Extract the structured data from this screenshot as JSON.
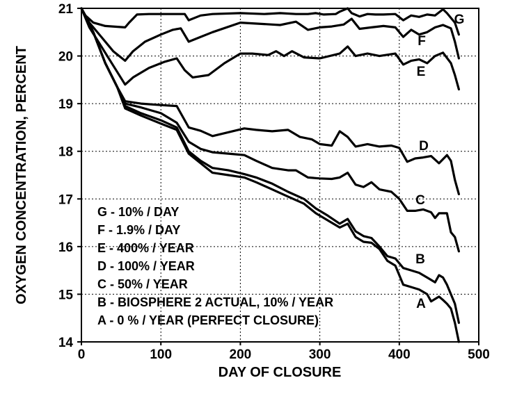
{
  "chart_data": {
    "type": "line",
    "title": "",
    "xlabel": "DAY OF CLOSURE",
    "ylabel": "OXYGEN CONCENTRATION, PERCENT",
    "xlim": [
      0,
      500
    ],
    "ylim": [
      14,
      21
    ],
    "xticks": [
      0,
      100,
      200,
      300,
      400,
      500
    ],
    "yticks": [
      14,
      15,
      16,
      17,
      18,
      19,
      20,
      21
    ],
    "grid": true,
    "legend": [
      "G - 10% / DAY",
      "F - 1.9% / DAY",
      "E - 400% / YEAR",
      "D - 100% / YEAR",
      "C - 50% / YEAR",
      "B - BIOSPHERE 2 ACTUAL, 10% / YEAR",
      "A - 0 % / YEAR (PERFECT CLOSURE)"
    ],
    "legend_position": "bottom-left",
    "series": [
      {
        "name": "G",
        "label": "G",
        "x": [
          0,
          5,
          15,
          30,
          55,
          60,
          70,
          85,
          100,
          115,
          130,
          135,
          150,
          165,
          200,
          230,
          250,
          270,
          285,
          295,
          305,
          320,
          325,
          335,
          340,
          350,
          360,
          370,
          380,
          395,
          405,
          415,
          425,
          435,
          445,
          455,
          460,
          470,
          475
        ],
        "y": [
          21,
          20.85,
          20.7,
          20.63,
          20.6,
          20.7,
          20.87,
          20.88,
          20.88,
          20.88,
          20.88,
          20.75,
          20.85,
          20.88,
          20.9,
          20.88,
          20.9,
          20.88,
          20.88,
          20.9,
          20.87,
          20.88,
          20.93,
          21,
          20.9,
          20.83,
          20.88,
          20.87,
          20.87,
          20.88,
          20.75,
          20.85,
          20.82,
          20.87,
          20.85,
          20.98,
          20.9,
          20.7,
          20.45
        ]
      },
      {
        "name": "F",
        "label": "F",
        "x": [
          0,
          10,
          25,
          40,
          55,
          65,
          80,
          100,
          115,
          125,
          135,
          150,
          165,
          200,
          230,
          250,
          270,
          285,
          300,
          315,
          330,
          340,
          350,
          365,
          380,
          395,
          405,
          415,
          425,
          435,
          445,
          455,
          465,
          470,
          475
        ],
        "y": [
          21,
          20.7,
          20.4,
          20.1,
          19.9,
          20.1,
          20.3,
          20.45,
          20.55,
          20.58,
          20.3,
          20.4,
          20.5,
          20.7,
          20.67,
          20.65,
          20.72,
          20.55,
          20.6,
          20.62,
          20.66,
          20.78,
          20.57,
          20.6,
          20.63,
          20.6,
          20.4,
          20.55,
          20.45,
          20.5,
          20.6,
          20.65,
          20.58,
          20.3,
          19.95
        ]
      },
      {
        "name": "E",
        "label": "E",
        "x": [
          0,
          10,
          25,
          40,
          55,
          65,
          85,
          105,
          120,
          130,
          140,
          160,
          180,
          200,
          215,
          235,
          245,
          255,
          265,
          280,
          300,
          325,
          335,
          345,
          360,
          375,
          395,
          405,
          415,
          425,
          435,
          445,
          455,
          465,
          470,
          475
        ],
        "y": [
          21,
          20.6,
          20.2,
          19.8,
          19.4,
          19.55,
          19.75,
          19.88,
          19.95,
          19.7,
          19.55,
          19.6,
          19.85,
          20.05,
          20.05,
          20.02,
          20.1,
          20.0,
          20.1,
          19.97,
          19.95,
          20.05,
          20.2,
          20.0,
          20.05,
          20.0,
          20.05,
          19.82,
          19.9,
          19.93,
          19.85,
          20.0,
          20.07,
          19.85,
          19.6,
          19.3
        ]
      },
      {
        "name": "D",
        "label": "D",
        "x": [
          0,
          15,
          30,
          45,
          55,
          75,
          100,
          120,
          135,
          150,
          165,
          185,
          205,
          220,
          240,
          260,
          275,
          290,
          300,
          315,
          325,
          335,
          345,
          360,
          375,
          390,
          400,
          410,
          420,
          430,
          440,
          450,
          460,
          465,
          470,
          475
        ],
        "y": [
          21,
          20.5,
          19.85,
          19.35,
          19.05,
          19.0,
          18.97,
          18.95,
          18.5,
          18.43,
          18.32,
          18.4,
          18.48,
          18.45,
          18.42,
          18.45,
          18.3,
          18.25,
          18.15,
          18.12,
          18.42,
          18.3,
          18.1,
          18.15,
          18.1,
          18.12,
          18.07,
          17.78,
          17.85,
          17.87,
          17.9,
          17.75,
          17.92,
          17.8,
          17.4,
          17.1
        ]
      },
      {
        "name": "C",
        "label": "C",
        "x": [
          0,
          15,
          30,
          45,
          55,
          75,
          100,
          120,
          135,
          150,
          165,
          185,
          205,
          220,
          240,
          260,
          270,
          285,
          300,
          315,
          325,
          335,
          345,
          355,
          365,
          375,
          390,
          400,
          410,
          420,
          430,
          440,
          445,
          450,
          460,
          465,
          470,
          475
        ],
        "y": [
          21,
          20.5,
          19.85,
          19.35,
          19.0,
          18.92,
          18.8,
          18.6,
          18.2,
          18.05,
          17.98,
          17.95,
          17.92,
          17.8,
          17.65,
          17.6,
          17.6,
          17.45,
          17.43,
          17.42,
          17.45,
          17.55,
          17.3,
          17.25,
          17.35,
          17.2,
          17.15,
          17.0,
          16.75,
          16.75,
          16.78,
          16.72,
          16.6,
          16.7,
          16.7,
          16.3,
          16.2,
          15.9
        ]
      },
      {
        "name": "B",
        "label": "B",
        "x": [
          0,
          15,
          30,
          45,
          55,
          75,
          100,
          120,
          135,
          150,
          165,
          185,
          205,
          220,
          240,
          260,
          280,
          295,
          310,
          325,
          335,
          345,
          355,
          365,
          375,
          385,
          395,
          405,
          415,
          425,
          435,
          445,
          450,
          455,
          460,
          470,
          475
        ],
        "y": [
          21,
          20.5,
          19.85,
          19.35,
          18.95,
          18.8,
          18.65,
          18.5,
          18.0,
          17.8,
          17.65,
          17.6,
          17.52,
          17.45,
          17.32,
          17.15,
          17.0,
          16.8,
          16.65,
          16.48,
          16.58,
          16.32,
          16.22,
          16.18,
          16.0,
          15.8,
          15.75,
          15.55,
          15.5,
          15.45,
          15.35,
          15.25,
          15.4,
          15.35,
          15.2,
          14.8,
          14.4
        ]
      },
      {
        "name": "A",
        "label": "A",
        "x": [
          0,
          15,
          30,
          45,
          55,
          75,
          100,
          120,
          135,
          150,
          165,
          185,
          205,
          220,
          240,
          260,
          280,
          295,
          310,
          325,
          335,
          345,
          355,
          365,
          375,
          385,
          395,
          405,
          415,
          425,
          430,
          435,
          440,
          445,
          450,
          455,
          460,
          465,
          470,
          475
        ],
        "y": [
          21,
          20.5,
          19.85,
          19.35,
          18.9,
          18.75,
          18.58,
          18.45,
          17.95,
          17.75,
          17.55,
          17.5,
          17.45,
          17.35,
          17.2,
          17.05,
          16.9,
          16.7,
          16.55,
          16.4,
          16.48,
          16.2,
          16.1,
          16.08,
          15.95,
          15.7,
          15.6,
          15.2,
          15.15,
          15.1,
          15.05,
          15.0,
          14.85,
          14.9,
          14.95,
          14.88,
          14.8,
          14.7,
          14.4,
          14.0
        ]
      }
    ]
  }
}
